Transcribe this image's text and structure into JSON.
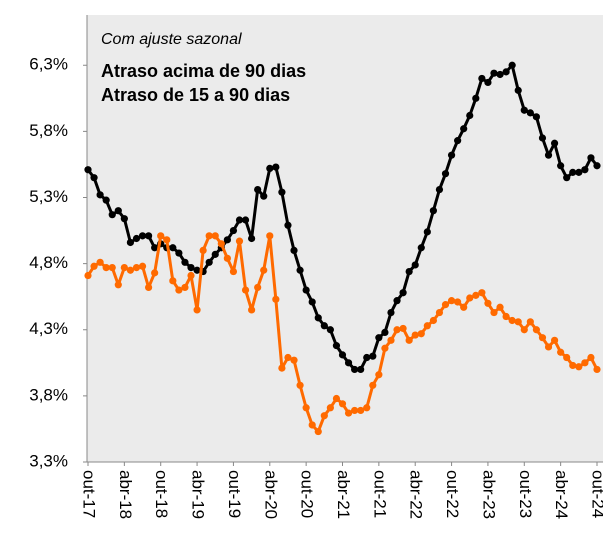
{
  "chart_data": {
    "type": "line",
    "annotation": "Com ajuste sazonal",
    "categories": [
      "out-17",
      null,
      null,
      null,
      null,
      null,
      "abr-18",
      null,
      null,
      null,
      null,
      null,
      "out-18",
      null,
      null,
      null,
      null,
      null,
      "abr-19",
      null,
      null,
      null,
      null,
      null,
      "out-19",
      null,
      null,
      null,
      null,
      null,
      "abr-20",
      null,
      null,
      null,
      null,
      null,
      "out-20",
      null,
      null,
      null,
      null,
      null,
      "abr-21",
      null,
      null,
      null,
      null,
      null,
      "out-21",
      null,
      null,
      null,
      null,
      null,
      "abr-22",
      null,
      null,
      null,
      null,
      null,
      "out-22",
      null,
      null,
      null,
      null,
      null,
      "abr-23",
      null,
      null,
      null,
      null,
      null,
      "out-23",
      null,
      null,
      null,
      null,
      null,
      "abr-24",
      null,
      null,
      null,
      null,
      null,
      "out-24"
    ],
    "series": [
      {
        "name": "Atraso acima de 90 dias",
        "color": "#000000",
        "values": [
          5.51,
          5.45,
          5.32,
          5.28,
          5.17,
          5.2,
          5.14,
          4.96,
          4.99,
          5.01,
          5.01,
          4.92,
          4.95,
          4.92,
          4.92,
          4.88,
          4.81,
          4.77,
          4.75,
          4.74,
          4.81,
          4.87,
          4.92,
          4.98,
          5.05,
          5.13,
          5.13,
          4.99,
          5.36,
          5.31,
          5.52,
          5.53,
          5.34,
          5.09,
          4.9,
          4.75,
          4.6,
          4.51,
          4.39,
          4.33,
          4.3,
          4.18,
          4.11,
          4.05,
          4.0,
          4.0,
          4.09,
          4.1,
          4.24,
          4.28,
          4.43,
          4.52,
          4.58,
          4.74,
          4.79,
          4.92,
          5.04,
          5.2,
          5.36,
          5.48,
          5.62,
          5.73,
          5.82,
          5.92,
          6.05,
          6.2,
          6.17,
          6.24,
          6.23,
          6.25,
          6.3,
          6.11,
          5.96,
          5.94,
          5.91,
          5.75,
          5.62,
          5.71,
          5.54,
          5.45,
          5.49,
          5.49,
          5.51,
          5.6,
          5.54
        ]
      },
      {
        "name": "Atraso de 15 a 90 dias",
        "color": "#ff6a00",
        "values": [
          4.71,
          4.78,
          4.81,
          4.77,
          4.77,
          4.64,
          4.77,
          4.75,
          4.77,
          4.78,
          4.62,
          4.73,
          5.01,
          4.98,
          4.67,
          4.6,
          4.62,
          4.71,
          4.45,
          4.9,
          5.01,
          5.01,
          4.95,
          4.84,
          4.74,
          4.97,
          4.6,
          4.45,
          4.62,
          4.75,
          5.01,
          4.53,
          4.01,
          4.09,
          4.07,
          3.88,
          3.71,
          3.58,
          3.53,
          3.65,
          3.71,
          3.78,
          3.74,
          3.67,
          3.69,
          3.69,
          3.71,
          3.88,
          3.96,
          4.16,
          4.22,
          4.3,
          4.31,
          4.22,
          4.26,
          4.27,
          4.33,
          4.37,
          4.43,
          4.49,
          4.52,
          4.51,
          4.47,
          4.54,
          4.56,
          4.58,
          4.5,
          4.43,
          4.47,
          4.4,
          4.37,
          4.36,
          4.3,
          4.36,
          4.3,
          4.24,
          4.17,
          4.22,
          4.13,
          4.09,
          4.03,
          4.02,
          4.05,
          4.09,
          4.0
        ]
      }
    ],
    "ylim": [
      3.3,
      6.68
    ],
    "yticks": [
      {
        "value": 3.3,
        "label": "3,3%"
      },
      {
        "value": 3.8,
        "label": "3,8%"
      },
      {
        "value": 4.3,
        "label": "4,3%"
      },
      {
        "value": 4.8,
        "label": "4,8%"
      },
      {
        "value": 5.3,
        "label": "5,3%"
      },
      {
        "value": 5.8,
        "label": "5,8%"
      },
      {
        "value": 6.3,
        "label": "6,3%"
      }
    ],
    "grid": false
  }
}
